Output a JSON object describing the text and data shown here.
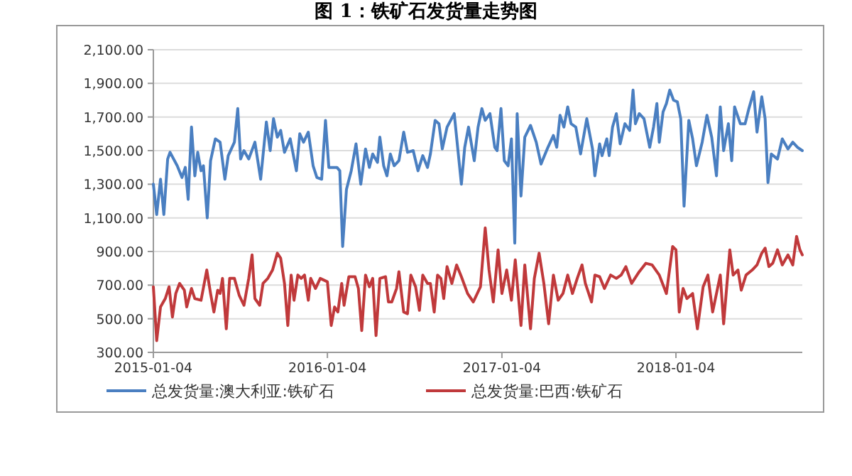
{
  "chart_data": {
    "type": "line",
    "title": "图 1：铁矿石发货量走势图",
    "xlim": [
      "2015-01-04",
      "2018-09-26"
    ],
    "xticks": [
      "2015-01-04",
      "2016-01-04",
      "2017-01-04",
      "2018-01-04"
    ],
    "ylim": [
      300,
      2100
    ],
    "yticks": [
      {
        "value": 300,
        "label": "300.00"
      },
      {
        "value": 500,
        "label": "500.00"
      },
      {
        "value": 700,
        "label": "700.00"
      },
      {
        "value": 900,
        "label": "900.00"
      },
      {
        "value": 1100,
        "label": "1,100.00"
      },
      {
        "value": 1300,
        "label": "1,300.00"
      },
      {
        "value": 1500,
        "label": "1,500.00"
      },
      {
        "value": 1700,
        "label": "1,700.00"
      },
      {
        "value": 1900,
        "label": "1,900.00"
      },
      {
        "value": 2100,
        "label": "2,100.00"
      }
    ],
    "grid": "y",
    "legend": "bottom",
    "line_style": "solid",
    "series": [
      {
        "name": "总发货量:澳大利亚:铁矿石",
        "color": "#4a7fc1",
        "x": [
          "2015-01-04",
          "2015-01-11",
          "2015-01-19",
          "2015-01-26",
          "2015-02-03",
          "2015-02-08",
          "2015-02-23",
          "2015-03-05",
          "2015-03-12",
          "2015-03-18",
          "2015-03-25",
          "2015-04-01",
          "2015-04-07",
          "2015-04-14",
          "2015-04-19",
          "2015-04-27",
          "2015-05-04",
          "2015-05-14",
          "2015-05-24",
          "2015-06-03",
          "2015-06-10",
          "2015-06-23",
          "2015-06-30",
          "2015-07-06",
          "2015-07-13",
          "2015-07-23",
          "2015-08-05",
          "2015-08-17",
          "2015-08-29",
          "2015-09-06",
          "2015-09-13",
          "2015-09-21",
          "2015-09-28",
          "2015-10-06",
          "2015-10-18",
          "2015-10-31",
          "2015-11-07",
          "2015-11-15",
          "2015-11-25",
          "2015-12-05",
          "2015-12-13",
          "2015-12-23",
          "2015-12-31",
          "2016-01-07",
          "2016-01-24",
          "2016-01-30",
          "2016-02-05",
          "2016-02-13",
          "2016-02-23",
          "2016-03-04",
          "2016-03-14",
          "2016-03-24",
          "2016-04-01",
          "2016-04-08",
          "2016-04-18",
          "2016-04-23",
          "2016-05-01",
          "2016-05-08",
          "2016-05-15",
          "2016-05-23",
          "2016-06-02",
          "2016-06-12",
          "2016-06-20",
          "2016-07-02",
          "2016-07-12",
          "2016-07-22",
          "2016-08-01",
          "2016-08-07",
          "2016-08-17",
          "2016-08-25",
          "2016-09-01",
          "2016-09-11",
          "2016-09-26",
          "2016-10-11",
          "2016-10-18",
          "2016-10-26",
          "2016-11-07",
          "2016-11-15",
          "2016-11-23",
          "2016-11-30",
          "2016-12-10",
          "2016-12-20",
          "2016-12-25",
          "2017-01-02",
          "2017-01-09",
          "2017-01-17",
          "2017-01-24",
          "2017-01-31",
          "2017-02-05",
          "2017-02-13",
          "2017-02-21",
          "2017-03-05",
          "2017-03-17",
          "2017-03-27",
          "2017-04-09",
          "2017-04-22",
          "2017-04-29",
          "2017-05-06",
          "2017-05-14",
          "2017-05-22",
          "2017-05-29",
          "2017-06-08",
          "2017-06-18",
          "2017-07-01",
          "2017-07-13",
          "2017-07-18",
          "2017-07-28",
          "2017-08-02",
          "2017-08-12",
          "2017-08-17",
          "2017-08-24",
          "2017-09-01",
          "2017-09-09",
          "2017-09-19",
          "2017-09-29",
          "2017-10-06",
          "2017-10-11",
          "2017-10-19",
          "2017-10-29",
          "2017-11-10",
          "2017-11-18",
          "2017-11-25",
          "2017-11-30",
          "2017-12-08",
          "2017-12-15",
          "2017-12-22",
          "2017-12-30",
          "2018-01-07",
          "2018-01-14",
          "2018-01-21",
          "2018-01-31",
          "2018-02-08",
          "2018-02-16",
          "2018-02-28",
          "2018-03-10",
          "2018-03-20",
          "2018-03-30",
          "2018-04-07",
          "2018-04-14",
          "2018-04-24",
          "2018-05-01",
          "2018-05-07",
          "2018-05-19",
          "2018-05-29",
          "2018-06-06",
          "2018-06-16",
          "2018-06-23",
          "2018-07-03",
          "2018-07-10",
          "2018-07-16",
          "2018-07-23",
          "2018-08-05",
          "2018-08-15",
          "2018-08-27",
          "2018-09-06",
          "2018-09-16",
          "2018-09-26"
        ],
        "values": [
          1300,
          1120,
          1330,
          1120,
          1450,
          1490,
          1410,
          1340,
          1400,
          1210,
          1640,
          1350,
          1490,
          1380,
          1410,
          1100,
          1440,
          1570,
          1550,
          1330,
          1470,
          1550,
          1750,
          1450,
          1500,
          1450,
          1550,
          1330,
          1670,
          1500,
          1690,
          1580,
          1620,
          1490,
          1570,
          1380,
          1600,
          1550,
          1610,
          1410,
          1340,
          1330,
          1680,
          1400,
          1400,
          1380,
          930,
          1270,
          1380,
          1540,
          1300,
          1510,
          1400,
          1480,
          1430,
          1580,
          1410,
          1350,
          1480,
          1410,
          1440,
          1610,
          1490,
          1500,
          1380,
          1470,
          1400,
          1480,
          1680,
          1660,
          1510,
          1640,
          1720,
          1300,
          1520,
          1640,
          1440,
          1640,
          1750,
          1680,
          1720,
          1520,
          1500,
          1750,
          1440,
          1410,
          1570,
          950,
          1720,
          1230,
          1580,
          1650,
          1550,
          1420,
          1510,
          1590,
          1520,
          1710,
          1640,
          1760,
          1660,
          1640,
          1480,
          1690,
          1510,
          1350,
          1540,
          1470,
          1570,
          1470,
          1640,
          1720,
          1540,
          1660,
          1620,
          1860,
          1660,
          1720,
          1690,
          1520,
          1640,
          1780,
          1550,
          1730,
          1780,
          1860,
          1800,
          1790,
          1690,
          1170,
          1680,
          1570,
          1410,
          1550,
          1710,
          1580,
          1350,
          1760,
          1500,
          1660,
          1440,
          1760,
          1660,
          1660,
          1750,
          1850,
          1610,
          1820,
          1690,
          1310,
          1480,
          1450,
          1570,
          1510,
          1550,
          1520,
          1500
        ]
      },
      {
        "name": "总发货量:巴西:铁矿石",
        "color": "#c0393b",
        "x": [
          "2015-01-04",
          "2015-01-11",
          "2015-01-19",
          "2015-01-29",
          "2015-02-06",
          "2015-02-13",
          "2015-02-20",
          "2015-02-28",
          "2015-03-10",
          "2015-03-15",
          "2015-03-25",
          "2015-04-01",
          "2015-04-14",
          "2015-04-26",
          "2015-05-04",
          "2015-05-11",
          "2015-05-19",
          "2015-05-24",
          "2015-05-29",
          "2015-06-06",
          "2015-06-13",
          "2015-06-23",
          "2015-07-03",
          "2015-07-13",
          "2015-07-23",
          "2015-07-30",
          "2015-08-05",
          "2015-08-15",
          "2015-08-22",
          "2015-09-01",
          "2015-09-11",
          "2015-09-21",
          "2015-09-28",
          "2015-10-06",
          "2015-10-13",
          "2015-10-20",
          "2015-10-26",
          "2015-11-03",
          "2015-11-10",
          "2015-11-17",
          "2015-11-25",
          "2015-11-30",
          "2015-12-10",
          "2015-12-20",
          "2016-01-04",
          "2016-01-12",
          "2016-01-19",
          "2016-01-26",
          "2016-02-03",
          "2016-02-08",
          "2016-02-18",
          "2016-03-02",
          "2016-03-09",
          "2016-03-16",
          "2016-03-24",
          "2016-04-01",
          "2016-04-08",
          "2016-04-15",
          "2016-04-23",
          "2016-05-05",
          "2016-05-11",
          "2016-05-18",
          "2016-05-28",
          "2016-06-02",
          "2016-06-12",
          "2016-06-20",
          "2016-06-27",
          "2016-07-07",
          "2016-07-15",
          "2016-07-22",
          "2016-08-01",
          "2016-08-07",
          "2016-08-15",
          "2016-08-22",
          "2016-08-29",
          "2016-09-04",
          "2016-09-11",
          "2016-09-21",
          "2016-10-01",
          "2016-10-11",
          "2016-10-24",
          "2016-11-05",
          "2016-11-20",
          "2016-11-30",
          "2016-12-08",
          "2016-12-17",
          "2016-12-27",
          "2017-01-04",
          "2017-01-14",
          "2017-01-24",
          "2017-02-01",
          "2017-02-13",
          "2017-02-21",
          "2017-03-05",
          "2017-03-13",
          "2017-03-23",
          "2017-04-02",
          "2017-04-12",
          "2017-04-22",
          "2017-05-02",
          "2017-05-12",
          "2017-05-22",
          "2017-06-01",
          "2017-06-11",
          "2017-06-21",
          "2017-06-28",
          "2017-07-11",
          "2017-07-18",
          "2017-07-28",
          "2017-08-07",
          "2017-08-20",
          "2017-09-01",
          "2017-09-11",
          "2017-09-21",
          "2017-10-03",
          "2017-10-19",
          "2017-11-02",
          "2017-11-15",
          "2017-11-30",
          "2017-12-15",
          "2017-12-28",
          "2018-01-04",
          "2018-01-11",
          "2018-01-19",
          "2018-01-27",
          "2018-02-08",
          "2018-02-18",
          "2018-03-02",
          "2018-03-12",
          "2018-03-22",
          "2018-04-07",
          "2018-04-14",
          "2018-04-27",
          "2018-05-04",
          "2018-05-14",
          "2018-05-21",
          "2018-05-31",
          "2018-06-13",
          "2018-06-23",
          "2018-07-03",
          "2018-07-10",
          "2018-07-18",
          "2018-07-26",
          "2018-08-05",
          "2018-08-15",
          "2018-08-27",
          "2018-09-06",
          "2018-09-14",
          "2018-09-21",
          "2018-09-26"
        ],
        "values": [
          690,
          370,
          570,
          620,
          690,
          510,
          650,
          710,
          670,
          570,
          680,
          620,
          610,
          790,
          650,
          540,
          670,
          650,
          740,
          440,
          740,
          740,
          640,
          580,
          740,
          880,
          620,
          580,
          710,
          740,
          790,
          890,
          860,
          710,
          460,
          760,
          610,
          760,
          740,
          760,
          610,
          740,
          680,
          740,
          720,
          460,
          570,
          540,
          710,
          580,
          750,
          750,
          680,
          430,
          760,
          690,
          740,
          400,
          740,
          750,
          600,
          600,
          680,
          780,
          540,
          530,
          760,
          690,
          550,
          760,
          710,
          710,
          540,
          760,
          740,
          620,
          810,
          710,
          820,
          750,
          650,
          600,
          690,
          1040,
          790,
          600,
          910,
          650,
          790,
          610,
          850,
          460,
          820,
          440,
          740,
          890,
          710,
          470,
          760,
          610,
          650,
          760,
          650,
          740,
          820,
          710,
          600,
          760,
          750,
          680,
          760,
          740,
          760,
          810,
          710,
          780,
          830,
          820,
          760,
          650,
          930,
          910,
          540,
          680,
          620,
          650,
          440,
          690,
          760,
          540,
          760,
          470,
          910,
          760,
          790,
          670,
          760,
          790,
          820,
          890,
          920,
          810,
          830,
          910,
          820,
          880,
          820,
          990,
          910,
          880
        ]
      }
    ]
  }
}
